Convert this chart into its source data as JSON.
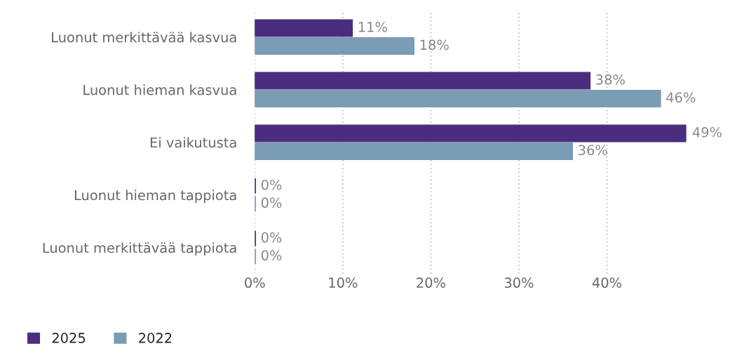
{
  "chart_data": {
    "type": "bar",
    "orientation": "horizontal",
    "categories": [
      "Luonut merkittävää kasvua",
      "Luonut hieman kasvua",
      "Ei vaikutusta",
      "Luonut hieman tappiota",
      "Luonut merkittävää tappiota"
    ],
    "series": [
      {
        "name": "2025",
        "color": "#4b2d7f",
        "values": [
          11,
          38,
          49,
          0,
          0
        ],
        "value_labels": [
          "11%",
          "38%",
          "49%",
          "0%",
          "0%"
        ]
      },
      {
        "name": "2022",
        "color": "#7a9cb5",
        "values": [
          18,
          46,
          36,
          0,
          0
        ],
        "value_labels": [
          "18%",
          "46%",
          "36%",
          "0%",
          "0%"
        ]
      }
    ],
    "xlim": [
      0,
      49
    ],
    "xticks": [
      {
        "value": 0,
        "label": "0%"
      },
      {
        "value": 10,
        "label": "10%"
      },
      {
        "value": 20,
        "label": "20%"
      },
      {
        "value": 30,
        "label": "30%"
      },
      {
        "value": 40,
        "label": "40%"
      }
    ],
    "grid": "x",
    "legend": "bottom left"
  }
}
